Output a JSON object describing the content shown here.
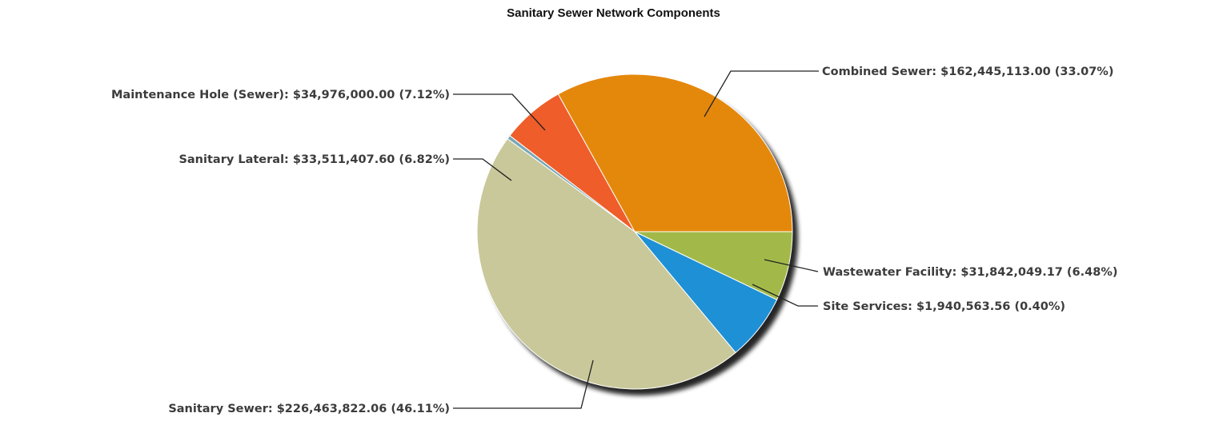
{
  "chart_data": {
    "type": "pie",
    "title": "Sanitary Sewer Network Components",
    "slices": [
      {
        "name": "Combined Sewer",
        "value": 162445113.0,
        "percent": 33.07,
        "label": "Combined Sewer: $162,445,113.00 (33.07%)",
        "color": "#e4880c"
      },
      {
        "name": "Wastewater Facility",
        "value": 31842049.17,
        "percent": 6.48,
        "label": "Wastewater Facility: $31,842,049.17 (6.48%)",
        "color": "#ef5d2a"
      },
      {
        "name": "Site Services",
        "value": 1940563.56,
        "percent": 0.4,
        "label": "Site Services: $1,940,563.56 (0.40%)",
        "color": "#7aa7b5"
      },
      {
        "name": "Sanitary Sewer",
        "value": 226463822.06,
        "percent": 46.11,
        "label": "Sanitary Sewer: $226,463,822.06 (46.11%)",
        "color": "#c9c89a"
      },
      {
        "name": "Sanitary Lateral",
        "value": 33511407.6,
        "percent": 6.82,
        "label": "Sanitary Lateral: $33,511,407.60 (6.82%)",
        "color": "#1e90d6"
      },
      {
        "name": "Maintenance Hole (Sewer)",
        "value": 34976000.0,
        "percent": 7.12,
        "label": "Maintenance Hole (Sewer): $34,976,000.00 (7.12%)",
        "color": "#a2b94a"
      }
    ]
  }
}
